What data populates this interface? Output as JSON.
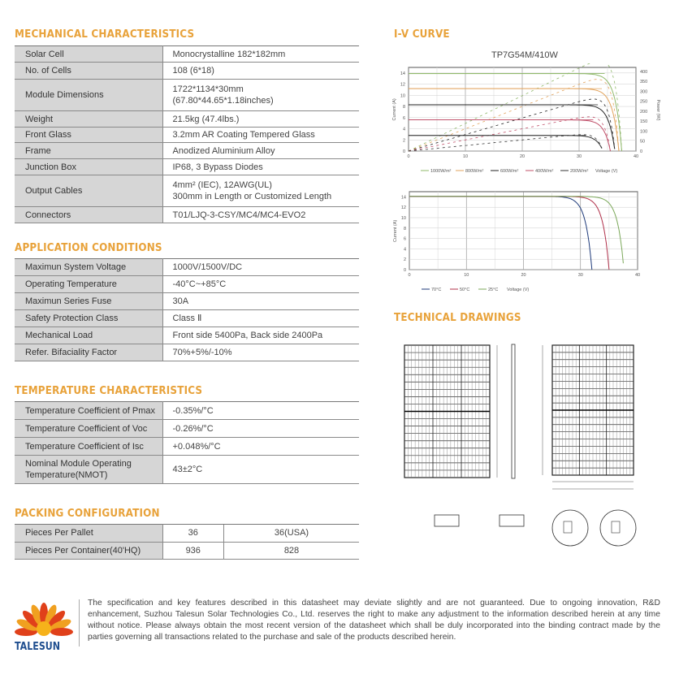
{
  "mechanical": {
    "heading": "MECHANICAL CHARACTERISTICS",
    "rows": [
      {
        "label": "Solar Cell",
        "value": "Monocrystalline 182*182mm"
      },
      {
        "label": "No. of Cells",
        "value": "108 (6*18)"
      },
      {
        "label": "Module Dimensions",
        "value": "1722*1134*30mm",
        "value2": "(67.80*44.65*1.18inches)"
      },
      {
        "label": "Weight",
        "value": "21.5kg (47.4lbs.)"
      },
      {
        "label": "Front Glass",
        "value": "3.2mm AR Coating Tempered Glass"
      },
      {
        "label": "Frame",
        "value": "Anodized Aluminium Alloy"
      },
      {
        "label": "Junction Box",
        "value": "IP68, 3 Bypass Diodes"
      },
      {
        "label": "Output Cables",
        "value": "4mm² (IEC), 12AWG(UL)",
        "value2": "300mm in Length or Customized Length"
      },
      {
        "label": "Connectors",
        "value": "T01/LJQ-3-CSY/MC4/MC4-EVO2"
      }
    ]
  },
  "application": {
    "heading": "APPLICATION CONDITIONS",
    "rows": [
      {
        "label": "Maximun System Voltage",
        "value": "1000V/1500V/DC"
      },
      {
        "label": "Operating Temperature",
        "value": "-40°C~+85°C"
      },
      {
        "label": "Maximun Series Fuse",
        "value": "30A"
      },
      {
        "label": "Safety Protection Class",
        "value": "Class Ⅱ"
      },
      {
        "label": "Mechanical Load",
        "value": "Front side 5400Pa, Back side 2400Pa"
      },
      {
        "label": "Refer. Bifaciality Factor",
        "value": "70%+5%/-10%"
      }
    ]
  },
  "temperature": {
    "heading": "TEMPERATURE CHARACTERISTICS",
    "rows": [
      {
        "label": "Temperature Coefficient of Pmax",
        "value": "-0.35%/°C"
      },
      {
        "label": "Temperature Coefficient of Voc",
        "value": "-0.26%/°C"
      },
      {
        "label": "Temperature Coefficient of Isc",
        "value": "+0.048%/°C"
      },
      {
        "label": "Nominal Module Operating",
        "label2": "Temperature(NMOT)",
        "value": "43±2°C"
      }
    ]
  },
  "packing": {
    "heading": "PACKING CONFIGURATION",
    "rows": [
      {
        "label": "Pieces Per Pallet",
        "values": [
          "36",
          "36(USA)"
        ]
      },
      {
        "label": "Pieces Per Container(40'HQ)",
        "values": [
          "936",
          "828"
        ]
      }
    ]
  },
  "iv_heading": "I-V CURVE",
  "drawings_heading": "TECHNICAL DRAWINGS",
  "chart_data": [
    {
      "type": "line",
      "title": "TP7G54M/410W",
      "ylabel": "Current (A)",
      "y2label": "Power (W)",
      "xlabel": "Voltage (V)",
      "xlim": [
        0,
        40
      ],
      "ylim": [
        0,
        15
      ],
      "y2lim": [
        0,
        420
      ],
      "xticks": [
        0,
        10,
        20,
        30,
        40
      ],
      "yticks": [
        0,
        2,
        4,
        6,
        8,
        10,
        12,
        14
      ],
      "y2ticks": [
        0,
        50,
        100,
        150,
        200,
        250,
        300,
        350,
        400
      ],
      "grid": true,
      "legend": "bottom",
      "series": [
        {
          "name": "1000W/m²",
          "isc": 13.9,
          "voc": 37.5,
          "color": "#8fb86a"
        },
        {
          "name": "800W/m²",
          "isc": 11.2,
          "voc": 37.0,
          "color": "#e2a35c"
        },
        {
          "name": "600W/m²",
          "isc": 8.3,
          "voc": 36.3,
          "color": "#222222"
        },
        {
          "name": "400W/m²",
          "isc": 5.6,
          "voc": 35.5,
          "color": "#c0506a"
        },
        {
          "name": "200W/m²",
          "isc": 2.8,
          "voc": 34.2,
          "color": "#333333"
        }
      ]
    },
    {
      "type": "line",
      "ylabel": "Current (A)",
      "xlabel": "Voltage (V)",
      "xlim": [
        0,
        40
      ],
      "ylim": [
        0,
        15
      ],
      "xticks": [
        0,
        10,
        20,
        30,
        40
      ],
      "yticks": [
        0,
        2,
        4,
        6,
        8,
        10,
        12,
        14
      ],
      "grid": true,
      "legend": "bottom",
      "series": [
        {
          "name": "70°C",
          "isc": 14.1,
          "voc": 32.0,
          "color": "#1e3a7a"
        },
        {
          "name": "50°C",
          "isc": 14.1,
          "voc": 35.0,
          "color": "#b0304a"
        },
        {
          "name": "25°C",
          "isc": 14.1,
          "voc": 37.6,
          "color": "#7ba85a"
        }
      ]
    }
  ],
  "footer": {
    "brand": "TALESUN",
    "brand_color": "#1f4e8f",
    "accent": "#e8a23a",
    "disclaimer": "The specification and key features described in this datasheet may deviate slightly and are not guaranteed. Due to ongoing innovation, R&D enhancement, Suzhou Talesun Solar Technologies Co., Ltd. reserves the right to make any adjustment to the information described herein at any time without notice. Please always obtain the most recent version of the datasheet which shall be duly incorporated into the binding contract made by the parties governing all transactions related to the purchase and sale of the products described herein."
  }
}
